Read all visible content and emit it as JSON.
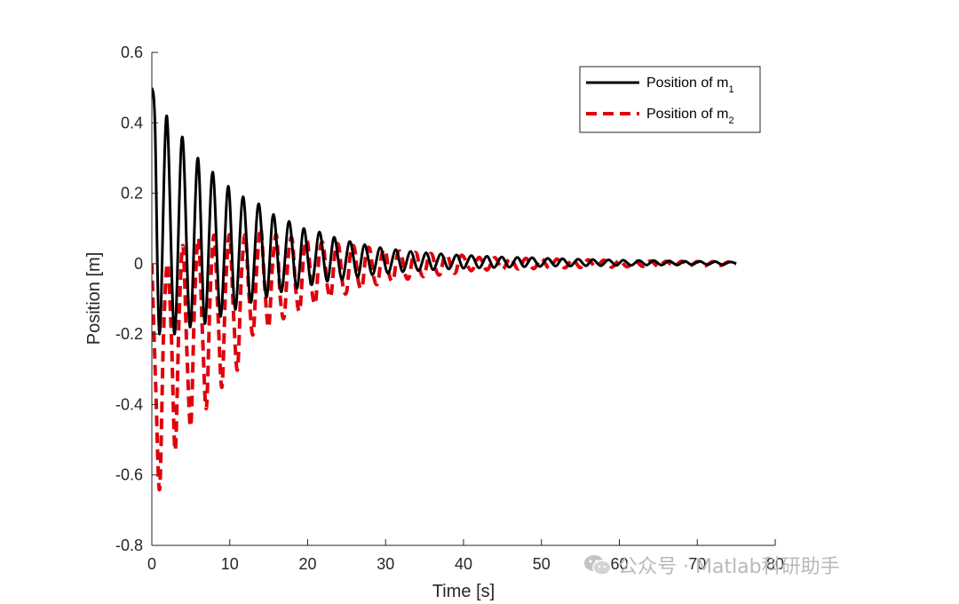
{
  "chart_data": {
    "type": "line",
    "xlabel": "Time [s]",
    "ylabel": "Position [m]",
    "xlim": [
      0,
      80
    ],
    "ylim": [
      -0.8,
      0.6
    ],
    "xticks": [
      "0",
      "10",
      "20",
      "30",
      "40",
      "50",
      "60",
      "70",
      "80"
    ],
    "yticks": [
      "-0.8",
      "-0.6",
      "-0.4",
      "-0.2",
      "0",
      "0.2",
      "0.4",
      "0.6"
    ],
    "legend_position": "top-right",
    "series": [
      {
        "name": "Position of m",
        "subscript": "1",
        "color": "#000000",
        "style": "solid",
        "x": [
          0,
          0.4,
          1.0,
          1.9,
          2.9,
          3.9,
          4.9,
          5.9,
          6.8,
          7.8,
          8.8,
          9.8,
          10.7,
          11.7,
          12.7,
          13.7,
          14.7,
          15.6,
          16.6,
          17.6,
          18.6,
          19.5,
          20.5,
          21.5,
          22.5,
          23.4,
          24.4,
          25.4,
          26.4,
          27.3,
          28.3,
          29.3,
          30.3,
          31.3,
          32.2,
          33.2,
          34.2,
          35.2,
          36.1,
          37.1,
          38.1,
          39.1,
          40.0,
          41.0,
          42.0,
          43.0,
          43.9,
          44.9,
          45.9,
          46.9,
          47.8,
          48.8,
          49.8,
          50.8,
          51.8,
          52.7,
          53.7,
          54.7,
          55.7,
          56.6,
          57.6,
          58.6,
          59.6,
          60.5,
          61.5,
          62.5,
          63.5,
          64.4,
          65.4,
          66.4,
          67.4,
          68.4,
          69.3,
          70.3,
          71.3,
          72.3,
          73.2,
          74.2,
          75.0
        ],
        "values": [
          0.5,
          0.4,
          -0.2,
          0.42,
          -0.2,
          0.36,
          -0.18,
          0.3,
          -0.17,
          0.26,
          -0.15,
          0.22,
          -0.13,
          0.19,
          -0.11,
          0.17,
          -0.095,
          0.14,
          -0.08,
          0.12,
          -0.07,
          0.1,
          -0.06,
          0.09,
          -0.05,
          0.075,
          -0.045,
          0.063,
          -0.038,
          0.054,
          -0.032,
          0.046,
          -0.027,
          0.04,
          -0.023,
          0.035,
          -0.02,
          0.031,
          -0.017,
          0.028,
          -0.015,
          0.025,
          -0.013,
          0.023,
          -0.012,
          0.021,
          -0.011,
          0.019,
          -0.01,
          0.018,
          -0.009,
          0.017,
          -0.008,
          0.015,
          -0.007,
          0.014,
          -0.007,
          0.013,
          -0.006,
          0.012,
          -0.006,
          0.011,
          -0.005,
          0.01,
          -0.005,
          0.009,
          -0.004,
          0.009,
          -0.004,
          0.008,
          -0.004,
          0.007,
          -0.003,
          0.007,
          -0.003,
          0.006,
          -0.003,
          0.005,
          0.0
        ]
      },
      {
        "name": "Position of m",
        "subscript": "2",
        "color": "#e0000c",
        "style": "dashed",
        "x": [
          0,
          0.5,
          1.0,
          1.5,
          2.0,
          2.5,
          3.0,
          3.5,
          4.0,
          4.5,
          5.0,
          5.5,
          6.0,
          6.5,
          7.0,
          7.5,
          8.0,
          8.5,
          9.0,
          9.5,
          10.0,
          10.5,
          11.0,
          11.5,
          12.0,
          12.5,
          13.0,
          13.5,
          14.0,
          14.5,
          15.0,
          15.5,
          16.0,
          16.5,
          17.0,
          17.5,
          18.0,
          18.5,
          19.0,
          19.5,
          20.0,
          20.5,
          21.0,
          21.5,
          22.0,
          22.5,
          23.0,
          23.5,
          24.0,
          24.5,
          25.0,
          25.5,
          26.0,
          26.5,
          27.0,
          27.5,
          28.0,
          28.5,
          29.0,
          29.5,
          30.0,
          30.5,
          31.0,
          31.5,
          32.0,
          32.5,
          33.0,
          33.5,
          34.0,
          34.5,
          35.0,
          35.5,
          36.0,
          36.5,
          37.0,
          37.5,
          38.0,
          38.5,
          39.0,
          39.5,
          40.0,
          41.0,
          42.0,
          43.0,
          44.0,
          45.0,
          46.0,
          47.0,
          48.0,
          49.0,
          50.0,
          51.0,
          52.0,
          53.0,
          54.0,
          55.0,
          56.0,
          57.0,
          58.0,
          59.0,
          60.0,
          61.0,
          62.0,
          63.0,
          64.0,
          65.0,
          66.0,
          67.0,
          68.0,
          69.0,
          70.0,
          71.0,
          72.0,
          73.0,
          74.0,
          75.0
        ],
        "values": [
          0.0,
          -0.35,
          -0.64,
          -0.2,
          0.0,
          -0.2,
          -0.53,
          -0.15,
          0.05,
          -0.25,
          -0.46,
          -0.1,
          0.07,
          -0.2,
          -0.41,
          -0.08,
          0.08,
          -0.15,
          -0.35,
          -0.05,
          0.08,
          -0.15,
          -0.3,
          -0.03,
          0.08,
          -0.1,
          -0.2,
          0.0,
          0.1,
          -0.07,
          -0.18,
          0.0,
          0.08,
          -0.1,
          -0.15,
          0.02,
          0.07,
          -0.08,
          -0.13,
          0.03,
          0.06,
          -0.07,
          -0.11,
          0.03,
          0.055,
          -0.06,
          -0.09,
          0.03,
          0.05,
          -0.06,
          -0.08,
          0.03,
          0.045,
          -0.05,
          -0.065,
          0.03,
          0.04,
          -0.04,
          -0.055,
          0.025,
          0.035,
          -0.035,
          -0.045,
          0.025,
          0.03,
          -0.03,
          -0.04,
          0.02,
          0.028,
          -0.025,
          -0.033,
          0.02,
          0.025,
          -0.02,
          -0.03,
          0.018,
          0.022,
          -0.018,
          -0.025,
          0.017,
          0.02,
          -0.02,
          0.018,
          -0.018,
          0.017,
          -0.016,
          0.016,
          -0.015,
          0.015,
          -0.014,
          0.014,
          -0.013,
          0.013,
          -0.012,
          0.012,
          -0.011,
          0.011,
          -0.01,
          0.01,
          -0.01,
          0.009,
          -0.009,
          0.009,
          -0.008,
          0.008,
          -0.008,
          0.007,
          -0.007,
          0.007,
          -0.006,
          0.006,
          -0.006,
          0.006,
          -0.005,
          0.005,
          0.0
        ]
      }
    ]
  },
  "watermark": {
    "text": "公众号 · Matlab科研助手",
    "icon": "wechat-icon"
  }
}
